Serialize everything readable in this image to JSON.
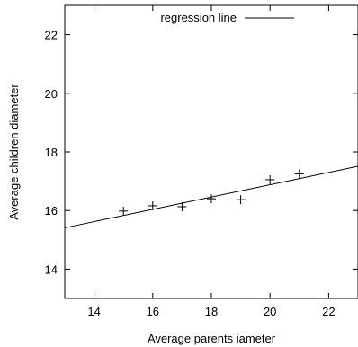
{
  "chart_data": {
    "type": "scatter",
    "title": "",
    "xlabel": "Average parents iameter",
    "ylabel": "Average children diameter",
    "xlim": [
      13,
      23
    ],
    "ylim": [
      13,
      23
    ],
    "xticks": [
      14,
      16,
      18,
      20,
      22
    ],
    "yticks": [
      14,
      16,
      18,
      20,
      22
    ],
    "grid": false,
    "legend_position": "top",
    "series": [
      {
        "marker": "+",
        "x": [
          15,
          16,
          17,
          18,
          19,
          20,
          21
        ],
        "y": [
          15.98,
          16.16,
          16.13,
          16.4,
          16.37,
          17.05,
          17.25
        ]
      },
      {
        "name": "regression line",
        "type": "line",
        "x": [
          13,
          23
        ],
        "y": [
          15.41,
          17.51
        ]
      }
    ]
  }
}
